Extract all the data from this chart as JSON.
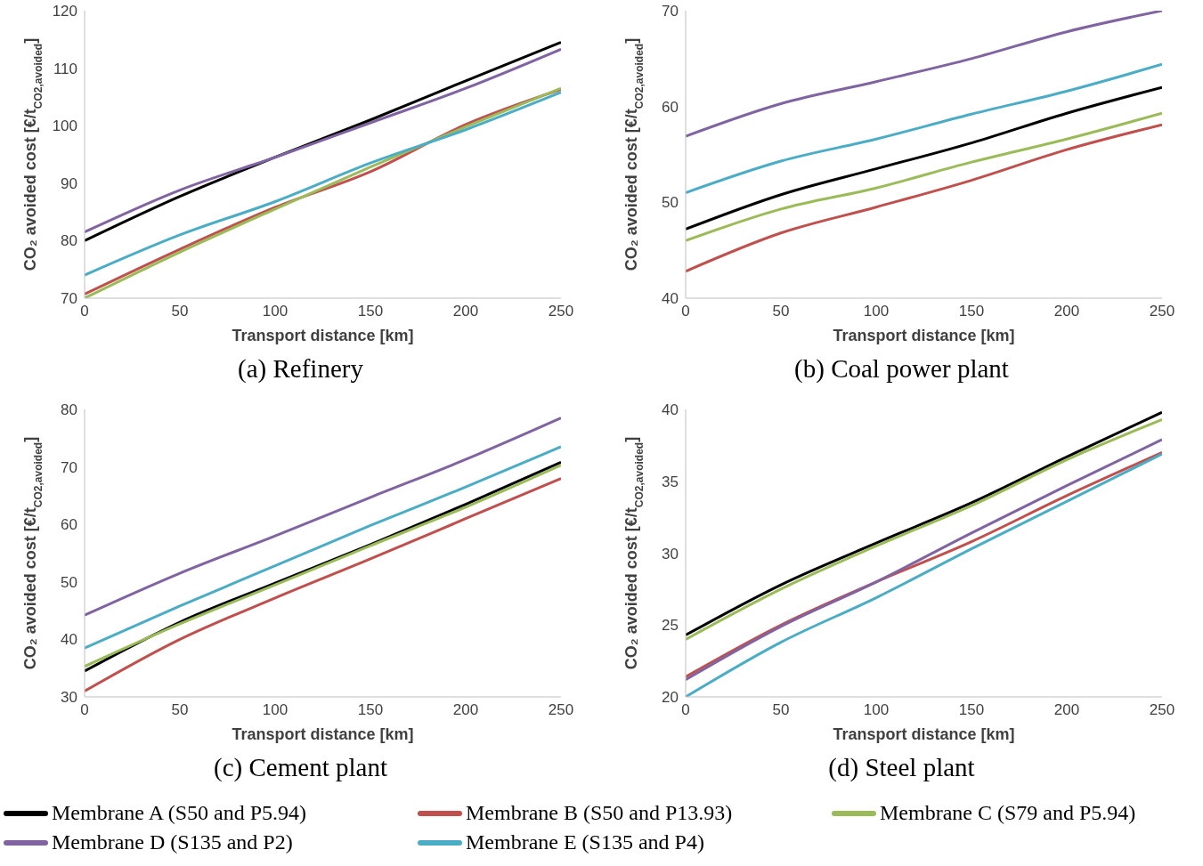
{
  "chart_data": [
    {
      "type": "line",
      "title": "(a) Refinery",
      "xlabel": "Transport distance [km]",
      "ylabel": "CO₂ avoided cost [€/t$_{CO2,avoided}$]",
      "x": [
        0,
        50,
        100,
        150,
        200,
        250
      ],
      "xlim": [
        0,
        250
      ],
      "xticks": [
        0,
        50,
        100,
        150,
        200,
        250
      ],
      "ylim": [
        70,
        120
      ],
      "yticks": [
        70,
        80,
        90,
        100,
        110,
        120
      ],
      "legend": "bottom",
      "series": [
        {
          "name": "Membrane A (S50 and P5.94)",
          "color": "#000000",
          "values": [
            80,
            87.7,
            94.5,
            101,
            107.8,
            114.5
          ]
        },
        {
          "name": "Membrane B (S50 and P13.93)",
          "color": "#c0504d",
          "values": [
            70.7,
            78.5,
            85.8,
            92,
            100.2,
            106.3
          ]
        },
        {
          "name": "Membrane C (S79 and P5.94)",
          "color": "#9bbb59",
          "values": [
            70,
            78,
            85.5,
            92.8,
            99.8,
            106.5
          ]
        },
        {
          "name": "Membrane D (S135 and P2)",
          "color": "#8064a2",
          "values": [
            81.5,
            88.8,
            94.5,
            100.5,
            106.5,
            113.3
          ]
        },
        {
          "name": "Membrane E (S135 and P4)",
          "color": "#4bacc6",
          "values": [
            74,
            81,
            86.8,
            93.5,
            99.3,
            105.8
          ]
        }
      ]
    },
    {
      "type": "line",
      "title": "(b) Coal power plant",
      "xlabel": "Transport distance [km]",
      "ylabel": "CO₂ avoided cost [€/t$_{CO2,avoided}$]",
      "x": [
        0,
        50,
        100,
        150,
        200,
        250
      ],
      "xlim": [
        0,
        250
      ],
      "xticks": [
        0,
        50,
        100,
        150,
        200,
        250
      ],
      "ylim": [
        40,
        70
      ],
      "yticks": [
        40,
        50,
        60,
        70
      ],
      "series": [
        {
          "color": "#000000",
          "values": [
            47.2,
            50.8,
            53.5,
            56.2,
            59.3,
            62
          ]
        },
        {
          "color": "#c0504d",
          "values": [
            42.8,
            46.8,
            49.5,
            52.3,
            55.5,
            58.1
          ]
        },
        {
          "color": "#9bbb59",
          "values": [
            46,
            49.3,
            51.5,
            54.2,
            56.6,
            59.3
          ]
        },
        {
          "color": "#8064a2",
          "values": [
            56.9,
            60.3,
            62.6,
            65,
            67.8,
            70
          ]
        },
        {
          "color": "#4bacc6",
          "values": [
            51,
            54.3,
            56.6,
            59.2,
            61.6,
            64.4
          ]
        }
      ]
    },
    {
      "type": "line",
      "title": "(c) Cement plant",
      "xlabel": "Transport distance [km]",
      "ylabel": "CO₂ avoided cost [€/t$_{CO2,avoided}$]",
      "x": [
        0,
        50,
        100,
        150,
        200,
        250
      ],
      "xlim": [
        0,
        250
      ],
      "xticks": [
        0,
        50,
        100,
        150,
        200,
        250
      ],
      "ylim": [
        30,
        80
      ],
      "yticks": [
        30,
        40,
        50,
        60,
        70,
        80
      ],
      "series": [
        {
          "color": "#000000",
          "values": [
            34.5,
            43,
            49.8,
            56.5,
            63.5,
            70.8
          ]
        },
        {
          "color": "#c0504d",
          "values": [
            31,
            40,
            47.2,
            54,
            61,
            68
          ]
        },
        {
          "color": "#9bbb59",
          "values": [
            35.3,
            42.7,
            49.5,
            56.3,
            63,
            70.3
          ]
        },
        {
          "color": "#8064a2",
          "values": [
            44.2,
            51.5,
            58,
            64.7,
            71.3,
            78.5
          ]
        },
        {
          "color": "#4bacc6",
          "values": [
            38.5,
            45.8,
            52.8,
            59.8,
            66.5,
            73.5
          ]
        }
      ]
    },
    {
      "type": "line",
      "title": "(d) Steel plant",
      "xlabel": "Transport distance [km]",
      "ylabel": "CO₂ avoided cost [€/t$_{CO2,avoided}$]",
      "x": [
        0,
        50,
        100,
        150,
        200,
        250
      ],
      "xlim": [
        0,
        250
      ],
      "xticks": [
        0,
        50,
        100,
        150,
        200,
        250
      ],
      "ylim": [
        20,
        40
      ],
      "yticks": [
        20,
        25,
        30,
        35,
        40
      ],
      "series": [
        {
          "color": "#000000",
          "values": [
            24.3,
            27.8,
            30.7,
            33.5,
            36.7,
            39.8
          ]
        },
        {
          "color": "#c0504d",
          "values": [
            21.4,
            25,
            28,
            30.8,
            34,
            37
          ]
        },
        {
          "color": "#9bbb59",
          "values": [
            24,
            27.5,
            30.5,
            33.3,
            36.5,
            39.3
          ]
        },
        {
          "color": "#8064a2",
          "values": [
            21.2,
            24.9,
            28,
            31.4,
            34.7,
            37.9
          ]
        },
        {
          "color": "#4bacc6",
          "values": [
            20,
            23.8,
            26.9,
            30.3,
            33.6,
            36.9
          ]
        }
      ]
    }
  ]
}
